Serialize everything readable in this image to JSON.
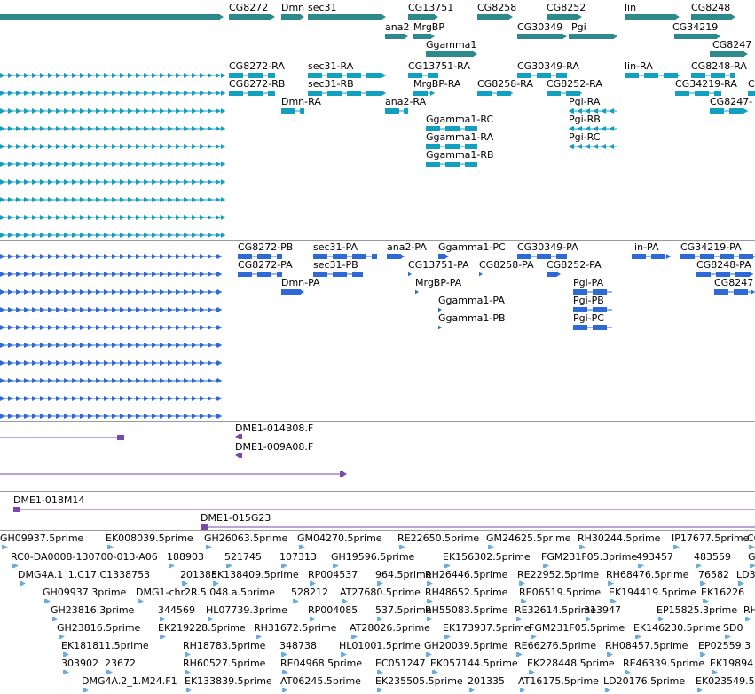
{
  "tracks": {
    "genes": {
      "name": "Gene Span",
      "color": "#2e8a8a",
      "labels": [
        "CG8272",
        "Dmn",
        "sec31",
        "CG13751",
        "CG8258",
        "CG8252",
        "lin",
        "CG8248",
        "ana2",
        "MrgBP",
        "CG30349",
        "Pgi",
        "CG34219",
        "Ggamma1",
        "CG8247"
      ]
    },
    "mrna": {
      "name": "mRNA",
      "color": "#12a0bf",
      "labels": [
        "CG8272-RA",
        "sec31-RA",
        "CG13751-RA",
        "CG30349-RA",
        "lin-RA",
        "CG8248-RA",
        "CG8272-RB",
        "sec31-RB",
        "MrgBP-RA",
        "CG8258-RA",
        "CG8252-RA",
        "CG34219-RA",
        "C",
        "Dmn-RA",
        "ana2-RA",
        "Pgi-RA",
        "CG8247-",
        "Ggamma1-RC",
        "Pgi-RB",
        "Ggamma1-RA",
        "Pgi-RC",
        "Ggamma1-RB"
      ]
    },
    "cds": {
      "name": "CDS",
      "color": "#2e6ad6",
      "labels": [
        "CG8272-PB",
        "sec31-PA",
        "ana2-PA",
        "Ggamma1-PC",
        "CG30349-PA",
        "lin-PA",
        "CG34219-PA",
        "CG8272-PA",
        "sec31-PB",
        "CG13751-PA",
        "CG8258-PA",
        "CG8252-PA",
        "CG8248-PA",
        "Dmn-PA",
        "MrgBP-PA",
        "Pgi-PA",
        "CG8247",
        "Ggamma1-PA",
        "Pgi-PB",
        "Ggamma1-PB",
        "Pgi-PC"
      ]
    },
    "bac_ends": {
      "name": "BAC Ends",
      "color": "#7a4aa8",
      "labels": [
        "DME1-014B08.F",
        "DME1-009A08.F"
      ]
    },
    "bac": {
      "name": "BACs",
      "color": "#7a4aa8",
      "labels": [
        "DME1-018M14",
        "DME1-015G23"
      ]
    },
    "est": {
      "name": "ESTs",
      "color": "#6aaedf",
      "labels": [
        "GH09937.5prime",
        "EK008039.5prime",
        "GH26063.5prime",
        "GM04270.5prime",
        "RE22650.5prime",
        "GM24625.5prime",
        "RH30244.5prime",
        "IP17677.5prime",
        "CO",
        "RC0-DA0008-130700-013-A06",
        "188903",
        "521745",
        "107313",
        "GH19596.5prime",
        "EK156302.5prime",
        "FGM231F05.3prime",
        "493457",
        "483559",
        "G",
        "DMG4A.1_1.C17.C1338753",
        "201385",
        "EK138409.5prime",
        "RP004537",
        "964.5prime",
        "RH26446.5prime",
        "RE22952.5prime",
        "RH68476.5prime",
        "76582",
        "LD3",
        "GH09937.3prime",
        "DMG1-chr2R.5.048.a.5prime",
        "528212",
        "AT27680.5prime",
        "RH48652.5prime",
        "RE06519.5prime",
        "EK194419.5prime",
        "EK16226",
        "GH23816.3prime",
        "344569",
        "HL07739.3prime",
        "RP004085",
        "537.5prime",
        "RH55083.5prime",
        "RE32614.5prime",
        "313947",
        "EP15825.3prime",
        "RH2",
        "GH23816.5prime",
        "EK219228.5prime",
        "RH31672.5prime",
        "AT28026.5prime",
        "EK173937.5prime",
        "FGM231F05.5prime",
        "EK146230.5prime",
        "SD0",
        "EK181811.5prime",
        "RH18783.5prime",
        "348738",
        "HL01001.5prime",
        "GH20039.5prime",
        "RE66276.5prime",
        "RH08457.5prime",
        "EP02559.3",
        "303902",
        "23672",
        "RH60527.5prime",
        "RE04968.5prime",
        "EC051247",
        "EK057144.5prime",
        "EK228448.5prime",
        "RE46339.5prime",
        "EK19894",
        "DMG4A.2_1.M24.F1",
        "EK133839.5prime",
        "AT06245.5prime",
        "EK235505.5prime",
        "201335",
        "AT16175.5prime",
        "LD20176.5prime",
        "EK023549.5"
      ]
    }
  }
}
